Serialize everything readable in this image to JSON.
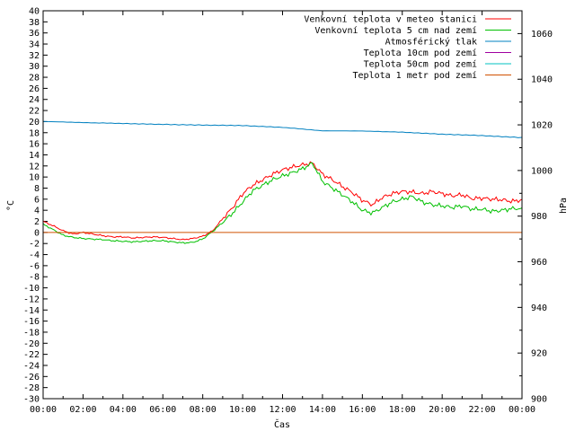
{
  "chart_data": {
    "type": "line",
    "xlabel": "Čas",
    "ylabel": "°C",
    "y2label": "hPa",
    "x_ticks": [
      "00:00",
      "02:00",
      "04:00",
      "06:00",
      "08:00",
      "10:00",
      "12:00",
      "14:00",
      "16:00",
      "18:00",
      "20:00",
      "22:00",
      "00:00"
    ],
    "x_range_hours": [
      0,
      24
    ],
    "ylim": [
      -30,
      40
    ],
    "y_step": 2,
    "y2lim": [
      900,
      1070
    ],
    "y2_ticks": [
      900,
      920,
      940,
      960,
      980,
      1000,
      1020,
      1040,
      1060
    ],
    "legend_position": "top-right",
    "series": [
      {
        "name": "Venkovní teplota v meteo stanici",
        "axis": "y",
        "color": "#ff0000",
        "x": [
          0,
          0.5,
          1,
          1.5,
          2,
          2.5,
          3,
          3.5,
          4,
          4.5,
          5,
          5.5,
          6,
          6.5,
          7,
          7.5,
          8,
          8.5,
          9,
          9.5,
          10,
          10.5,
          11,
          11.5,
          12,
          12.5,
          13,
          13.5,
          14,
          14.5,
          15,
          15.5,
          16,
          16.5,
          17,
          17.5,
          18,
          18.5,
          19,
          19.5,
          20,
          20.5,
          21,
          21.5,
          22,
          22.5,
          23,
          23.5,
          24
        ],
        "values": [
          2,
          1.2,
          0.3,
          -0.3,
          0.0,
          -0.3,
          -0.6,
          -0.8,
          -0.8,
          -1.0,
          -0.9,
          -0.8,
          -0.9,
          -1.1,
          -1.3,
          -1.1,
          -0.7,
          0.3,
          2.5,
          4.5,
          7,
          8.5,
          9.5,
          10.5,
          11.3,
          11.8,
          12.2,
          12.5,
          10.5,
          9.5,
          8.3,
          7.2,
          5.8,
          5.0,
          6.3,
          7.0,
          7.4,
          7.3,
          7.0,
          7.4,
          7.0,
          6.6,
          6.8,
          6.1,
          6.2,
          6.0,
          5.9,
          5.6,
          5.9
        ]
      },
      {
        "name": "Venkovní teplota 5 cm nad zemí",
        "axis": "y",
        "color": "#00c000",
        "x": [
          0,
          0.5,
          1,
          1.5,
          2,
          2.5,
          3,
          3.5,
          4,
          4.5,
          5,
          5.5,
          6,
          6.5,
          7,
          7.5,
          8,
          8.5,
          9,
          9.5,
          10,
          10.5,
          11,
          11.5,
          12,
          12.5,
          13,
          13.5,
          14,
          14.5,
          15,
          15.5,
          16,
          16.5,
          17,
          17.5,
          18,
          18.5,
          19,
          19.5,
          20,
          20.5,
          21,
          21.5,
          22,
          22.5,
          23,
          23.5,
          24
        ],
        "values": [
          1.5,
          0.5,
          -0.5,
          -0.9,
          -1.1,
          -1.2,
          -1.3,
          -1.5,
          -1.6,
          -1.7,
          -1.6,
          -1.5,
          -1.5,
          -1.7,
          -1.9,
          -1.8,
          -1.2,
          0.2,
          1.8,
          3.5,
          5.5,
          7.5,
          8.5,
          9.5,
          10.2,
          10.8,
          11.5,
          12.5,
          9.2,
          8.0,
          6.8,
          5.5,
          4.0,
          3.5,
          4.5,
          5.5,
          6.0,
          6.5,
          5.5,
          5.0,
          4.8,
          4.5,
          4.8,
          4.2,
          4.2,
          3.8,
          4.0,
          4.3,
          4.3
        ]
      },
      {
        "name": "Atmosférický tlak",
        "axis": "y2",
        "color": "#0080c0",
        "x": [
          0,
          2,
          4,
          6,
          8,
          10,
          12,
          14,
          16,
          18,
          20,
          22,
          24
        ],
        "values": [
          1021.5,
          1021.0,
          1020.6,
          1020.2,
          1019.9,
          1019.7,
          1018.9,
          1017.4,
          1017.3,
          1016.8,
          1015.9,
          1015.3,
          1014.4
        ]
      },
      {
        "name": "Teplota 10cm pod zemí",
        "axis": "y",
        "color": "#a000a0",
        "x": [],
        "values": []
      },
      {
        "name": "Teplota 50cm pod zemí",
        "axis": "y",
        "color": "#00c0c0",
        "x": [],
        "values": []
      },
      {
        "name": "Teplota 1 metr pod zemí",
        "axis": "y",
        "color": "#d05000",
        "x": [
          0,
          24
        ],
        "values": [
          0,
          0
        ]
      }
    ]
  }
}
